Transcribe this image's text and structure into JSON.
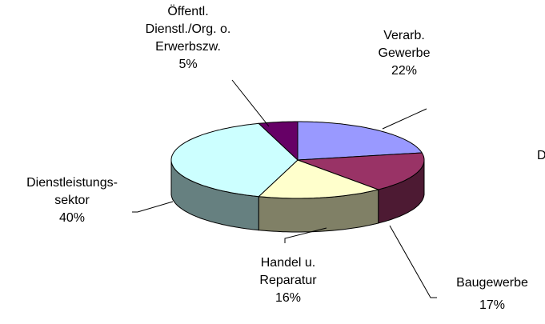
{
  "chart_data": {
    "type": "pie3d",
    "categories": [
      "Verarb.\nGewerbe",
      "Baugewerbe",
      "Handel u.\nReparatur",
      "Dienstleistungs-\nsektor",
      "Öffentl.\nDienstl./Org. o.\nErwerbszw."
    ],
    "values": [
      22,
      17,
      16,
      40,
      5
    ],
    "value_labels": [
      "22%",
      "17%",
      "16%",
      "40%",
      "5%"
    ],
    "colors": [
      "#9999ff",
      "#993366",
      "#ffffcc",
      "#ccffff",
      "#660066"
    ],
    "annotation": "Di"
  }
}
